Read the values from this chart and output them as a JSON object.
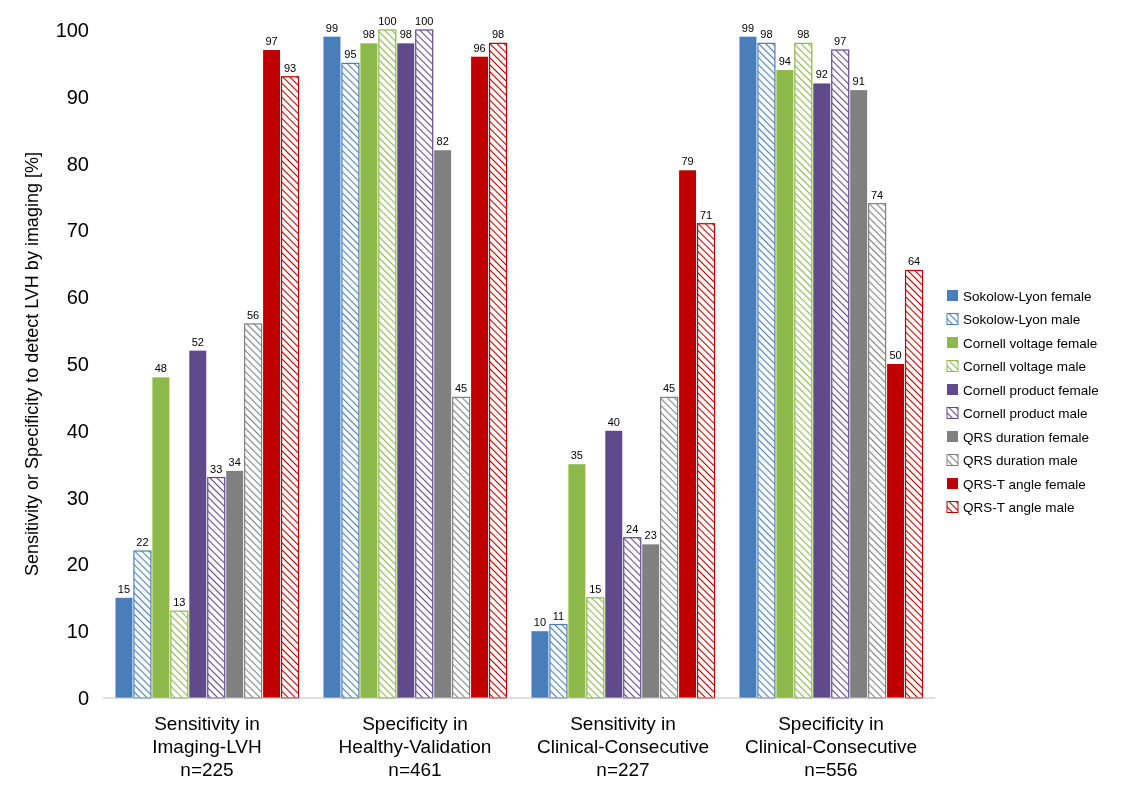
{
  "chart_data": {
    "type": "bar",
    "ylabel": "Sensitivity or Specificity to detect LVH by imaging [%]",
    "categories": [
      "Sensitivity in\nImaging-LVH\nn=225",
      "Specificity in\nHealthy-Validation\nn=461",
      "Sensitivity in\nClinical-Consecutive\nn=227",
      "Specificity in\nClinical-Consecutive\nn=556"
    ],
    "ylim": [
      0,
      100
    ],
    "yticks": [
      0,
      10,
      20,
      30,
      40,
      50,
      60,
      70,
      80,
      90,
      100
    ],
    "grid": false,
    "legend": "right",
    "data_labels": true,
    "series": [
      {
        "name": "Sokolow-Lyon female",
        "color": "#4a7ebb",
        "values": [
          15,
          99,
          10,
          99
        ]
      },
      {
        "name": "Sokolow-Lyon male",
        "color": "#4a7ebb",
        "values": [
          22,
          95,
          11,
          98
        ]
      },
      {
        "name": "Cornell voltage female",
        "color": "#8db84a",
        "values": [
          48,
          98,
          35,
          94
        ]
      },
      {
        "name": "Cornell voltage male",
        "color": "#8db84a",
        "values": [
          13,
          100,
          15,
          98
        ]
      },
      {
        "name": "Cornell product female",
        "color": "#5f4b8b",
        "values": [
          52,
          98,
          40,
          92
        ]
      },
      {
        "name": "Cornell product male",
        "color": "#5f4b8b",
        "values": [
          33,
          100,
          24,
          97
        ]
      },
      {
        "name": "QRS duration female",
        "color": "#808080",
        "values": [
          34,
          82,
          23,
          91
        ]
      },
      {
        "name": "QRS duration male",
        "color": "#808080",
        "values": [
          56,
          45,
          45,
          74
        ]
      },
      {
        "name": "QRS-T angle female",
        "color": "#c00000",
        "values": [
          97,
          96,
          79,
          50
        ]
      },
      {
        "name": "QRS-T angle male",
        "color": "#c00000",
        "values": [
          93,
          98,
          71,
          64
        ]
      }
    ]
  }
}
